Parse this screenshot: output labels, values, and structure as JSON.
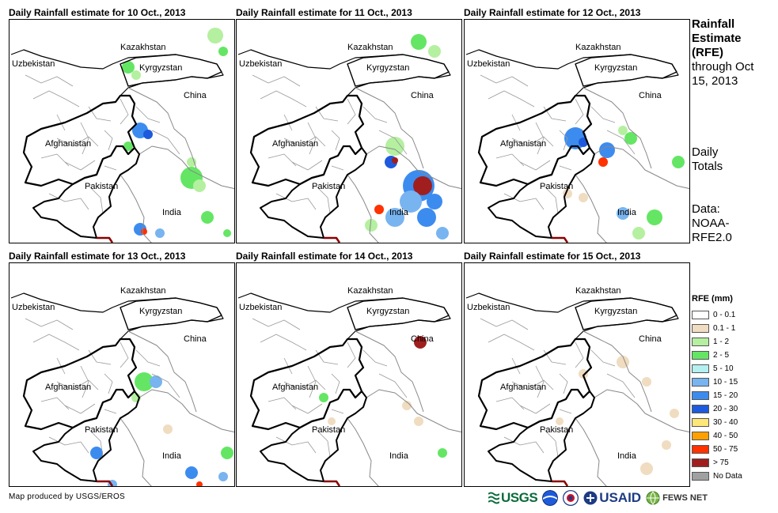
{
  "panels": [
    {
      "title": "Daily Rainfall estimate for 10 Oct., 2013"
    },
    {
      "title": "Daily Rainfall estimate for 11 Oct., 2013"
    },
    {
      "title": "Daily Rainfall estimate for 12 Oct., 2013"
    },
    {
      "title": "Daily Rainfall estimate for 13 Oct., 2013"
    },
    {
      "title": "Daily Rainfall estimate for 14 Oct., 2013"
    },
    {
      "title": "Daily Rainfall estimate for 15 Oct., 2013"
    }
  ],
  "map_labels": {
    "kazakhstan": "Kazakhstan",
    "uzbekistan": "Uzbekistan",
    "kyrgyzstan": "Kyrgyzstan",
    "china": "China",
    "afghanistan": "Afghanistan",
    "pakistan": "Pakistan",
    "india": "India"
  },
  "side": {
    "title_bold": "Rainfall Estimate (RFE)",
    "title_rest": "through Oct 15, 2013",
    "daily_totals": "Daily Totals",
    "data_source": "Data: NOAA-RFE2.0"
  },
  "legend": {
    "title": "RFE (mm)",
    "items": [
      {
        "label": "0 - 0.1",
        "color": "#ffffff"
      },
      {
        "label": "0.1 - 1",
        "color": "#f0dcc0"
      },
      {
        "label": "1 - 2",
        "color": "#b4f0a0"
      },
      {
        "label": "2 - 5",
        "color": "#64e664"
      },
      {
        "label": "5 - 10",
        "color": "#b4f0f0"
      },
      {
        "label": "10 - 15",
        "color": "#78b4f0"
      },
      {
        "label": "15 - 20",
        "color": "#3c8cf0"
      },
      {
        "label": "20 - 30",
        "color": "#1e5adc"
      },
      {
        "label": "30 - 40",
        "color": "#ffe678"
      },
      {
        "label": "40 - 50",
        "color": "#ffa000"
      },
      {
        "label": "50 - 75",
        "color": "#ff3200"
      },
      {
        "label": "> 75",
        "color": "#a01e1e"
      },
      {
        "label": "No Data",
        "color": "#a0a0a0"
      }
    ]
  },
  "footer": {
    "credit": "Map produced by USGS/EROS",
    "logo_usgs": "USGS",
    "logo_usaid": "USAID",
    "logo_fews": "FEWS NET"
  }
}
